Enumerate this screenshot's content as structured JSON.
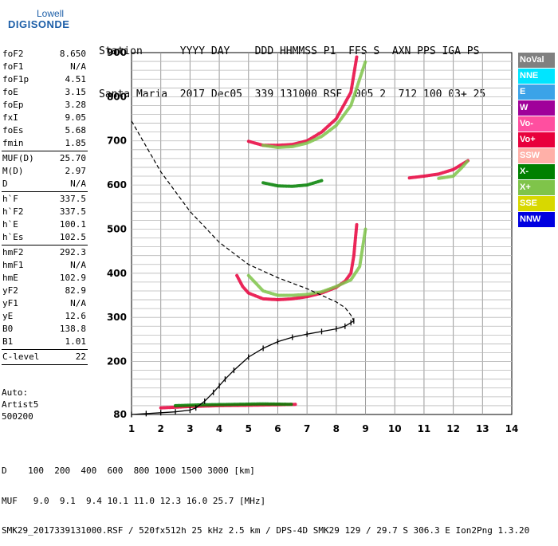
{
  "logo": {
    "line1": "Lowell",
    "line2": "DIGISONDE"
  },
  "header": {
    "row1": "Station      YYYY DAY    DDD HHMMSS P1  FFS S  AXN PPS IGA PS",
    "row2": "Santa Maria  2017 Dec05  339 131000 RSF  005 2  712 100 03+ 25"
  },
  "params": [
    [
      {
        "k": "foF2",
        "v": "8.650"
      },
      {
        "k": "foF1",
        "v": "N/A"
      },
      {
        "k": "foF1p",
        "v": "4.51"
      },
      {
        "k": "foE",
        "v": "3.15"
      },
      {
        "k": "foEp",
        "v": "3.28"
      },
      {
        "k": "fxI",
        "v": "9.05"
      },
      {
        "k": "foEs",
        "v": "5.68"
      },
      {
        "k": "fmin",
        "v": "1.85"
      }
    ],
    [
      {
        "k": "MUF(D)",
        "v": "25.70"
      },
      {
        "k": "M(D)",
        "v": "2.97"
      },
      {
        "k": "D",
        "v": "N/A"
      }
    ],
    [
      {
        "k": "h`F",
        "v": "337.5"
      },
      {
        "k": "h`F2",
        "v": "337.5"
      },
      {
        "k": "h`E",
        "v": "100.1"
      },
      {
        "k": "h`Es",
        "v": "102.5"
      }
    ],
    [
      {
        "k": "hmF2",
        "v": "292.3"
      },
      {
        "k": "hmF1",
        "v": "N/A"
      },
      {
        "k": "hmE",
        "v": "102.9"
      },
      {
        "k": "yF2",
        "v": "82.9"
      },
      {
        "k": "yF1",
        "v": "N/A"
      },
      {
        "k": "yE",
        "v": "12.6"
      },
      {
        "k": "B0",
        "v": "138.8"
      },
      {
        "k": "B1",
        "v": "1.01"
      }
    ],
    [
      {
        "k": "C-level",
        "v": "22"
      }
    ]
  ],
  "auto": {
    "line1": "Auto:",
    "line2": "Artist5",
    "line3": "500200"
  },
  "legend": [
    {
      "label": "NoVal",
      "color": "#808080"
    },
    {
      "label": "NNE",
      "color": "#00e5ff"
    },
    {
      "label": "E",
      "color": "#3ba3e8"
    },
    {
      "label": "W",
      "color": "#a0009a"
    },
    {
      "label": "Vo-",
      "color": "#ff4fa0"
    },
    {
      "label": "Vo+",
      "color": "#e8003c"
    },
    {
      "label": "SSW",
      "color": "#ffb0a8"
    },
    {
      "label": "X-",
      "color": "#008000"
    },
    {
      "label": "X+",
      "color": "#7fc44a"
    },
    {
      "label": "SSE",
      "color": "#d8d800"
    },
    {
      "label": "NNW",
      "color": "#0000e0"
    }
  ],
  "footer": {
    "line1": "D    100  200  400  600  800 1000 1500 3000 [km]",
    "line2": "MUF   9.0  9.1  9.4 10.1 11.0 12.3 16.0 25.7 [MHz]",
    "line3": "SMK29_2017339131000.RSF / 520fx512h 25 kHz 2.5 km / DPS-4D SMK29 129 / 29.7 S 306.3 E Ion2Png 1.3.20"
  },
  "chart_data": {
    "type": "scatter",
    "x_ticks": [
      "1",
      "2",
      "3",
      "4",
      "5",
      "6",
      "7",
      "8",
      "9",
      "10",
      "11",
      "12",
      "13",
      "14"
    ],
    "y_ticks": [
      "80",
      "200",
      "300",
      "400",
      "500",
      "600",
      "700",
      "800",
      "900"
    ],
    "xlim": [
      1,
      14
    ],
    "ylim": [
      80,
      900
    ],
    "grid": true,
    "profile_curve": {
      "x": [
        1.0,
        1.5,
        2.0,
        2.5,
        3.0,
        3.2,
        3.5,
        3.8,
        4.0,
        4.2,
        4.5,
        5.0,
        5.5,
        6.0,
        6.5,
        7.0,
        7.5,
        8.0,
        8.3,
        8.5,
        8.6
      ],
      "y": [
        80,
        82,
        84,
        86,
        90,
        95,
        110,
        130,
        145,
        160,
        180,
        210,
        230,
        245,
        255,
        262,
        268,
        274,
        280,
        288,
        292
      ]
    },
    "topside_curve": {
      "x": [
        1.0,
        2.0,
        3.0,
        4.0,
        5.0,
        6.0,
        7.0,
        7.5,
        8.0,
        8.3,
        8.5,
        8.6
      ],
      "y": [
        745,
        630,
        540,
        470,
        420,
        390,
        365,
        350,
        335,
        322,
        305,
        292
      ]
    },
    "series": [
      {
        "legend": "Vo+",
        "x": [
          4.6,
          4.8,
          5.0,
          5.5,
          6.0,
          6.5,
          7.0,
          7.5,
          8.0,
          8.3,
          8.5,
          8.6,
          8.7
        ],
        "y": [
          395,
          370,
          355,
          342,
          340,
          342,
          347,
          355,
          368,
          382,
          400,
          440,
          510
        ]
      },
      {
        "legend": "X+",
        "x": [
          5.0,
          5.5,
          6.0,
          6.5,
          7.0,
          7.5,
          8.0,
          8.5,
          8.8,
          9.0
        ],
        "y": [
          395,
          360,
          350,
          350,
          352,
          358,
          370,
          385,
          415,
          500
        ]
      },
      {
        "legend": "Vo+",
        "x": [
          5.0,
          5.5,
          6.0,
          6.5,
          7.0,
          7.5,
          8.0,
          8.5,
          8.7
        ],
        "y": [
          699,
          690,
          690,
          692,
          700,
          720,
          750,
          810,
          890
        ]
      },
      {
        "legend": "X+",
        "x": [
          5.5,
          6.0,
          6.5,
          7.0,
          7.5,
          8.0,
          8.5,
          9.0
        ],
        "y": [
          690,
          685,
          687,
          695,
          710,
          735,
          780,
          880
        ]
      },
      {
        "legend": "X-",
        "x": [
          5.5,
          6.0,
          6.5,
          7.0,
          7.5
        ],
        "y": [
          605,
          598,
          597,
          600,
          610
        ]
      },
      {
        "legend": "Vo+",
        "x": [
          10.5,
          11.0,
          11.5,
          12.0,
          12.5
        ],
        "y": [
          616,
          620,
          625,
          635,
          655
        ]
      },
      {
        "legend": "X+",
        "x": [
          11.5,
          12.0,
          12.3,
          12.5
        ],
        "y": [
          615,
          620,
          640,
          655
        ]
      },
      {
        "legend": "Vo+",
        "x": [
          2.0,
          3.0,
          4.0,
          5.0,
          6.0,
          6.6
        ],
        "y": [
          95,
          98,
          100,
          101,
          102,
          103
        ]
      },
      {
        "legend": "X-",
        "x": [
          2.5,
          3.5,
          4.5,
          5.5,
          6.5
        ],
        "y": [
          100,
          102,
          103,
          104,
          103
        ]
      }
    ]
  }
}
